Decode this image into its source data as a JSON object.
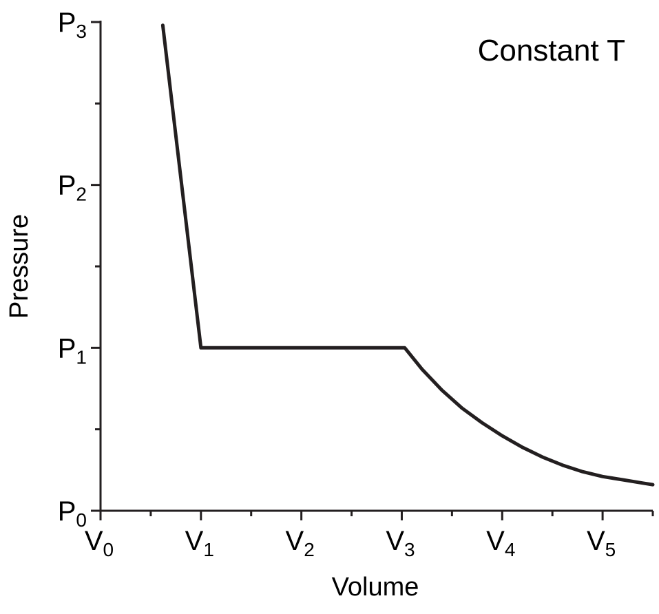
{
  "chart_data": {
    "type": "line",
    "title": "",
    "xlabel": "Volume",
    "ylabel": "Pressure",
    "annotation": "Constant T",
    "xlim": [
      0,
      5.5
    ],
    "ylim": [
      0,
      3
    ],
    "grid": false,
    "legend": "none",
    "line_color": "#231f20",
    "x_ticks": [
      {
        "value": 0,
        "base": "V",
        "sub": "0"
      },
      {
        "value": 1,
        "base": "V",
        "sub": "1"
      },
      {
        "value": 2,
        "base": "V",
        "sub": "2"
      },
      {
        "value": 3,
        "base": "V",
        "sub": "3"
      },
      {
        "value": 4,
        "base": "V",
        "sub": "4"
      },
      {
        "value": 5,
        "base": "V",
        "sub": "5"
      }
    ],
    "x_minor_ticks": [
      0.5,
      1.5,
      2.5,
      3.5,
      4.5,
      5.5
    ],
    "y_ticks": [
      {
        "value": 0,
        "base": "P",
        "sub": "0"
      },
      {
        "value": 1,
        "base": "P",
        "sub": "1"
      },
      {
        "value": 2,
        "base": "P",
        "sub": "2"
      },
      {
        "value": 3,
        "base": "P",
        "sub": "3"
      }
    ],
    "y_minor_ticks": [
      0.5,
      1.5,
      2.5
    ],
    "series": [
      {
        "x": [
          0.62,
          1.0,
          3.03,
          3.2,
          3.4,
          3.6,
          3.8,
          4.0,
          4.2,
          4.4,
          4.6,
          4.8,
          5.0,
          5.2,
          5.4,
          5.5
        ],
        "y": [
          2.98,
          1.0,
          1.0,
          0.87,
          0.74,
          0.63,
          0.54,
          0.46,
          0.39,
          0.33,
          0.28,
          0.24,
          0.21,
          0.19,
          0.17,
          0.16
        ]
      }
    ]
  }
}
